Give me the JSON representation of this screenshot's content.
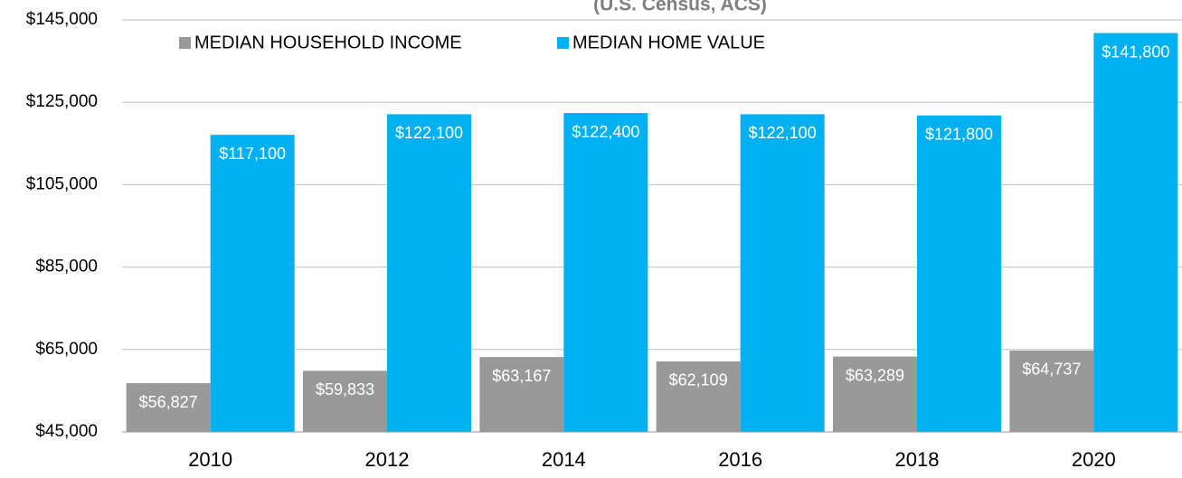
{
  "chart_data": {
    "type": "bar",
    "subtitle": "(U.S. Census, ACS)",
    "categories": [
      "2010",
      "2012",
      "2014",
      "2016",
      "2018",
      "2020"
    ],
    "series": [
      {
        "name": "MEDIAN HOUSEHOLD INCOME",
        "color": "#999999",
        "values": [
          56827,
          59833,
          63167,
          62109,
          63289,
          64737
        ],
        "value_labels": [
          "$56,827",
          "$59,833",
          "$63,167",
          "$62,109",
          "$63,289",
          "$64,737"
        ]
      },
      {
        "name": "MEDIAN HOME VALUE",
        "color": "#00b0f0",
        "values": [
          117100,
          122100,
          122400,
          122100,
          121800,
          141800
        ],
        "value_labels": [
          "$117,100",
          "$122,100",
          "$122,400",
          "$122,100",
          "$121,800",
          "$141,800"
        ]
      }
    ],
    "ylim": [
      45000,
      145000
    ],
    "yticks": [
      {
        "value": 45000,
        "label": "$45,000"
      },
      {
        "value": 65000,
        "label": "$65,000"
      },
      {
        "value": 85000,
        "label": "$85,000"
      },
      {
        "value": 105000,
        "label": "$105,000"
      },
      {
        "value": 125000,
        "label": "$125,000"
      },
      {
        "value": 145000,
        "label": "$145,000"
      }
    ],
    "grid": true,
    "legend": "top"
  }
}
